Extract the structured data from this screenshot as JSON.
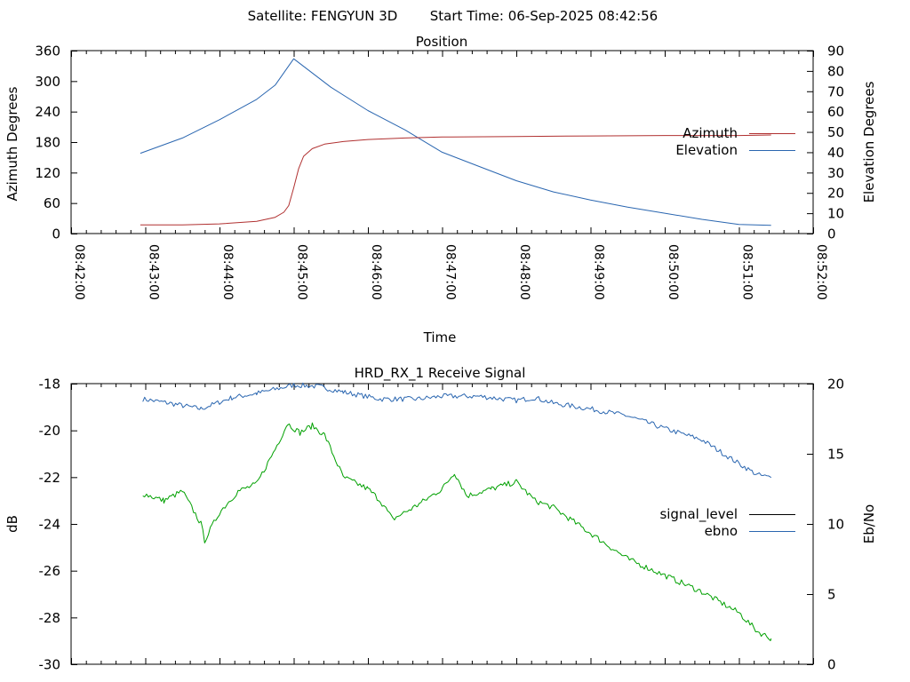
{
  "header": {
    "satellite_label": "Satellite: FENGYUN 3D",
    "start_time_label": "Start Time: 06-Sep-2025 08:42:56"
  },
  "chart_data": [
    {
      "type": "line",
      "title": "Position",
      "xlabel": "Time",
      "ylabel": "Azimuth Degrees",
      "y2label": "Elevation Degrees",
      "x_ticks": [
        "08:42:00",
        "08:43:00",
        "08:44:00",
        "08:45:00",
        "08:46:00",
        "08:47:00",
        "08:48:00",
        "08:49:00",
        "08:50:00",
        "08:51:00",
        "08:52:00"
      ],
      "xlim": [
        "08:42:00",
        "08:52:00"
      ],
      "ylim": [
        0,
        360
      ],
      "y_ticks": [
        0,
        60,
        120,
        180,
        240,
        300,
        360
      ],
      "y2lim": [
        0,
        90
      ],
      "y2_ticks": [
        0,
        10,
        20,
        30,
        40,
        50,
        60,
        70,
        80,
        90
      ],
      "legend_position": "right",
      "grid": false,
      "series": [
        {
          "name": "Azimuth",
          "axis": "y",
          "color": "#b03030",
          "points": [
            [
              "08:42:56",
              17
            ],
            [
              "08:43:30",
              17
            ],
            [
              "08:44:00",
              19
            ],
            [
              "08:44:30",
              24
            ],
            [
              "08:44:45",
              32
            ],
            [
              "08:44:52",
              42
            ],
            [
              "08:44:56",
              55
            ],
            [
              "08:45:00",
              90
            ],
            [
              "08:45:04",
              128
            ],
            [
              "08:45:08",
              152
            ],
            [
              "08:45:15",
              167
            ],
            [
              "08:45:25",
              176
            ],
            [
              "08:45:40",
              181
            ],
            [
              "08:46:00",
              185
            ],
            [
              "08:46:30",
              188
            ],
            [
              "08:47:00",
              190
            ],
            [
              "08:48:00",
              191
            ],
            [
              "08:49:00",
              192
            ],
            [
              "08:50:00",
              193
            ],
            [
              "08:51:00",
              193
            ],
            [
              "08:51:26",
              194
            ]
          ]
        },
        {
          "name": "Elevation",
          "axis": "y2",
          "color": "#2a66b0",
          "points": [
            [
              "08:42:56",
              39.5
            ],
            [
              "08:43:30",
              47
            ],
            [
              "08:44:00",
              56
            ],
            [
              "08:44:30",
              66
            ],
            [
              "08:44:45",
              73
            ],
            [
              "08:45:00",
              86
            ],
            [
              "08:45:30",
              72
            ],
            [
              "08:46:00",
              60.5
            ],
            [
              "08:46:30",
              51
            ],
            [
              "08:47:00",
              40
            ],
            [
              "08:47:30",
              33
            ],
            [
              "08:48:00",
              26
            ],
            [
              "08:48:30",
              20.5
            ],
            [
              "08:49:00",
              16.5
            ],
            [
              "08:49:30",
              13
            ],
            [
              "08:50:00",
              10
            ],
            [
              "08:50:30",
              7
            ],
            [
              "08:51:00",
              4.5
            ],
            [
              "08:51:26",
              4
            ]
          ]
        }
      ]
    },
    {
      "type": "line",
      "title": "HRD_RX_1 Receive Signal",
      "xlabel": "",
      "ylabel": "dB",
      "y2label": "Eb/No",
      "xlim": [
        "08:42:00",
        "08:52:00"
      ],
      "ylim": [
        -30,
        -18
      ],
      "y_ticks": [
        -30,
        -28,
        -26,
        -24,
        -22,
        -20,
        -18
      ],
      "y2lim": [
        0,
        20
      ],
      "y2_ticks": [
        0,
        5,
        10,
        15,
        20
      ],
      "legend_position": "right",
      "grid": false,
      "series": [
        {
          "name": "signal_level",
          "axis": "y",
          "color": "#00a000",
          "legend_color": "#000000",
          "points": [
            [
              "08:42:58",
              -22.7
            ],
            [
              "08:43:15",
              -23.0
            ],
            [
              "08:43:30",
              -22.6
            ],
            [
              "08:43:45",
              -24.0
            ],
            [
              "08:43:48",
              -24.7
            ],
            [
              "08:44:00",
              -23.5
            ],
            [
              "08:44:15",
              -22.6
            ],
            [
              "08:44:30",
              -22.3
            ],
            [
              "08:44:45",
              -20.8
            ],
            [
              "08:44:55",
              -19.7
            ],
            [
              "08:45:05",
              -20.1
            ],
            [
              "08:45:15",
              -19.8
            ],
            [
              "08:45:25",
              -20.2
            ],
            [
              "08:45:40",
              -22.0
            ],
            [
              "08:46:00",
              -22.5
            ],
            [
              "08:46:10",
              -23.0
            ],
            [
              "08:46:20",
              -23.8
            ],
            [
              "08:46:40",
              -23.2
            ],
            [
              "08:47:00",
              -22.5
            ],
            [
              "08:47:10",
              -21.8
            ],
            [
              "08:47:20",
              -22.8
            ],
            [
              "08:47:40",
              -22.5
            ],
            [
              "08:48:00",
              -22.2
            ],
            [
              "08:48:15",
              -23.0
            ],
            [
              "08:48:30",
              -23.3
            ],
            [
              "08:49:00",
              -24.4
            ],
            [
              "08:49:30",
              -25.5
            ],
            [
              "08:50:00",
              -26.2
            ],
            [
              "08:50:30",
              -26.9
            ],
            [
              "08:51:00",
              -27.8
            ],
            [
              "08:51:15",
              -28.6
            ],
            [
              "08:51:26",
              -28.9
            ]
          ]
        },
        {
          "name": "ebno",
          "axis": "y2",
          "color": "#2a66b0",
          "points": [
            [
              "08:42:58",
              18.9
            ],
            [
              "08:43:20",
              18.6
            ],
            [
              "08:43:45",
              18.2
            ],
            [
              "08:44:10",
              19.0
            ],
            [
              "08:44:30",
              19.3
            ],
            [
              "08:45:00",
              19.9
            ],
            [
              "08:45:20",
              19.8
            ],
            [
              "08:45:40",
              19.4
            ],
            [
              "08:46:10",
              18.9
            ],
            [
              "08:46:40",
              18.9
            ],
            [
              "08:47:00",
              19.1
            ],
            [
              "08:47:30",
              19.1
            ],
            [
              "08:48:00",
              18.8
            ],
            [
              "08:48:15",
              19.0
            ],
            [
              "08:48:30",
              18.6
            ],
            [
              "08:49:00",
              18.2
            ],
            [
              "08:49:30",
              17.7
            ],
            [
              "08:50:00",
              16.8
            ],
            [
              "08:50:30",
              16.0
            ],
            [
              "08:51:00",
              14.3
            ],
            [
              "08:51:15",
              13.5
            ],
            [
              "08:51:26",
              13.3
            ]
          ]
        }
      ]
    }
  ]
}
